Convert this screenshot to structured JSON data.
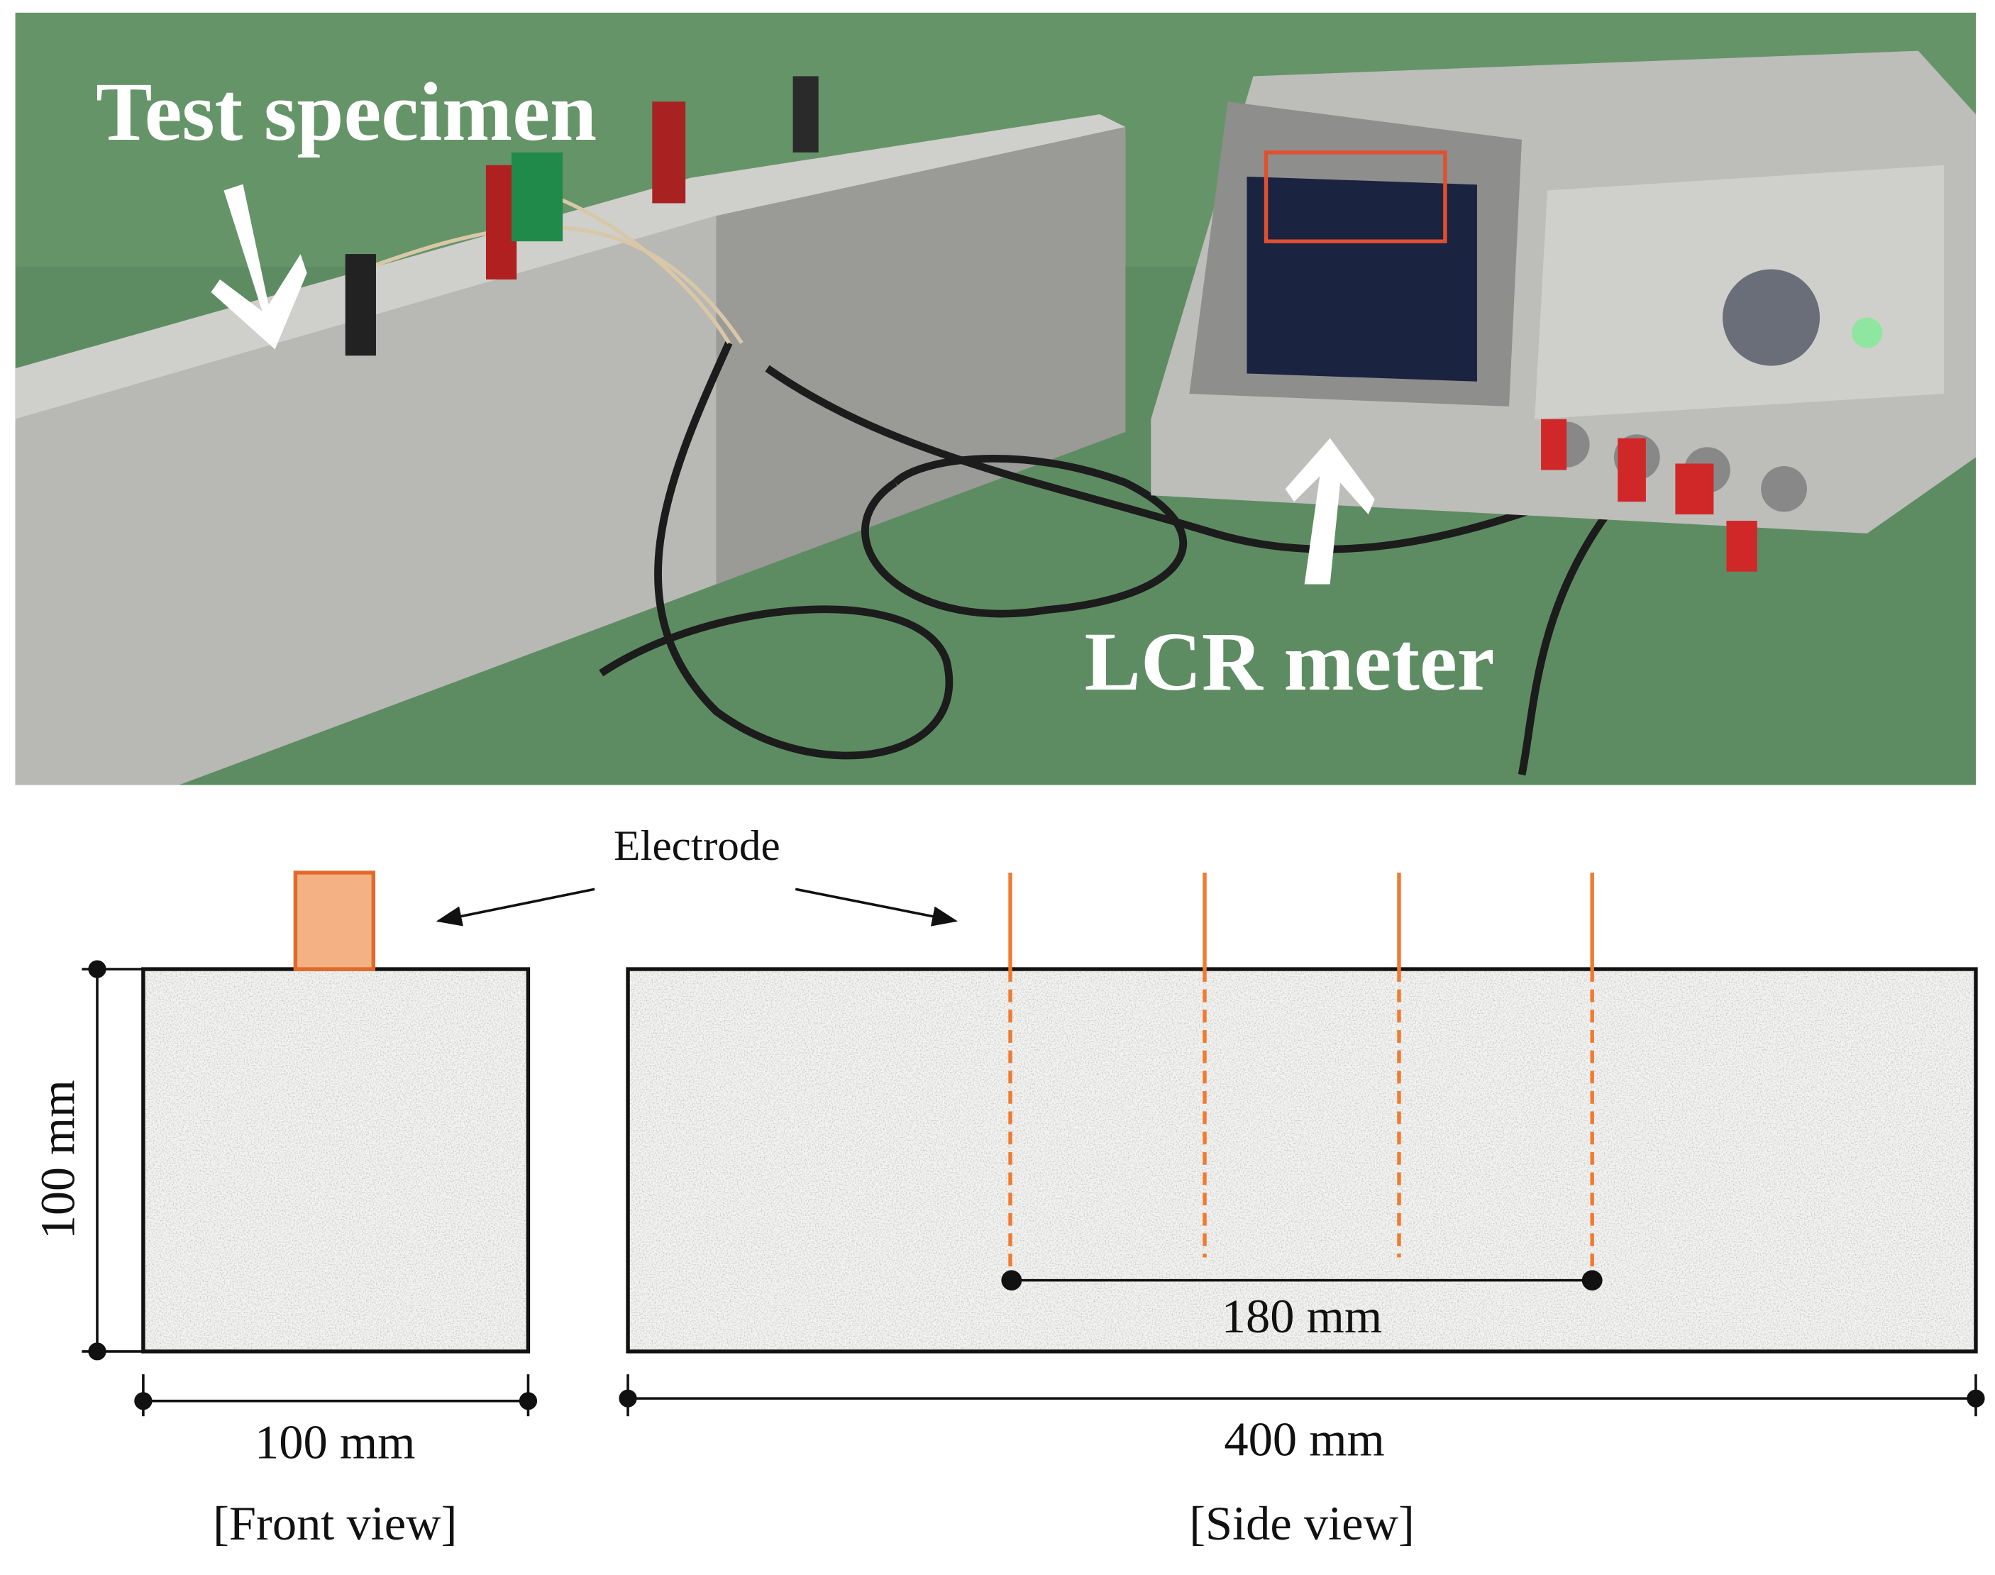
{
  "photo": {
    "labels": [
      "Test specimen",
      "LCR meter"
    ]
  },
  "diagram": {
    "electrode_label": "Electrode",
    "front_view": {
      "height_label": "100 mm",
      "width_label": "100 mm",
      "caption": "[Front view]"
    },
    "side_view": {
      "spacing_label": "180 mm",
      "length_label": "400 mm",
      "caption": "[Side view]"
    }
  }
}
